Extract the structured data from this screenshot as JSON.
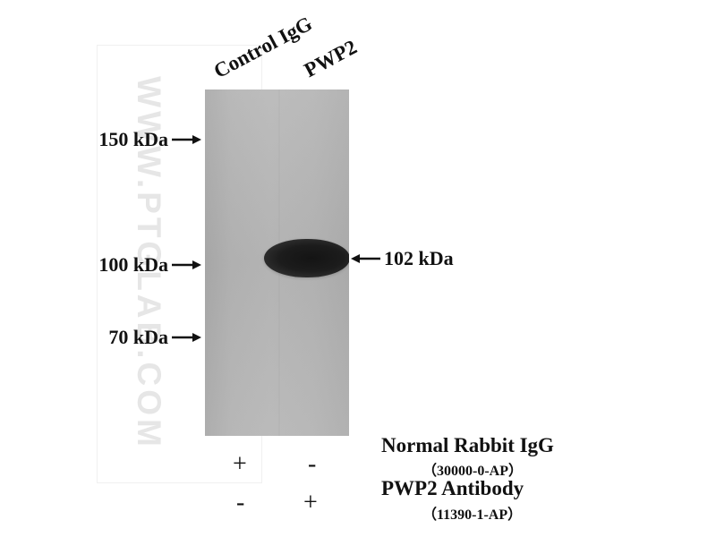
{
  "figure": {
    "lanes": [
      {
        "label": "Control IgG"
      },
      {
        "label": "PWP2"
      }
    ],
    "left_markers": [
      {
        "label": "150 kDa"
      },
      {
        "label": "100 kDa"
      },
      {
        "label": "70 kDa"
      }
    ],
    "band_marker": {
      "label": "102 kDa"
    },
    "watermark": "WWW.PTGLAB.COM",
    "treatments": [
      {
        "name": "Normal Rabbit IgG",
        "catalog": "（30000-0-AP）",
        "signs": [
          "+",
          "-"
        ]
      },
      {
        "name": "PWP2 Antibody",
        "catalog": "（11390-1-AP）",
        "signs": [
          "-",
          "+"
        ]
      }
    ]
  },
  "icons": {
    "arrow_right": "arrow-right-icon",
    "arrow_left": "arrow-left-icon"
  },
  "colors": {
    "blot_background": "#b4b4b4",
    "band": "#1a1a1a",
    "watermark": "#e6e6e6",
    "text": "#111111"
  }
}
